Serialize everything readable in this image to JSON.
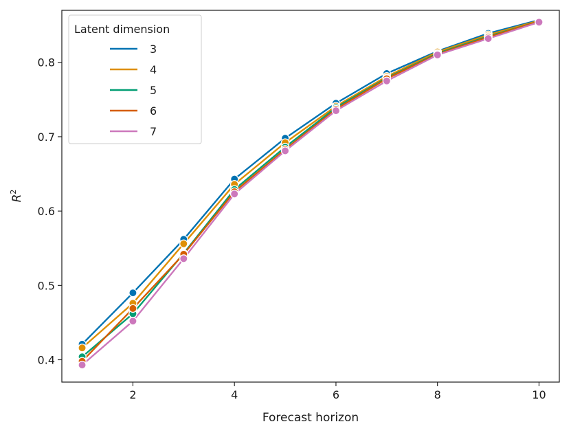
{
  "chart_data": {
    "type": "line",
    "xlabel": "Forecast horizon",
    "ylabel": "R",
    "ylabel_superscript": "2",
    "xlim": [
      0.6,
      10.4
    ],
    "ylim": [
      0.37,
      0.87
    ],
    "xticks": [
      2,
      4,
      6,
      8,
      10
    ],
    "yticks": [
      0.4,
      0.5,
      0.6,
      0.7,
      0.8
    ],
    "ytick_labels": [
      "0.4",
      "0.5",
      "0.6",
      "0.7",
      "0.8"
    ],
    "grid": false,
    "legend": {
      "title": "Latent dimension",
      "placement": "top-left"
    },
    "x": [
      1,
      2,
      3,
      4,
      5,
      6,
      7,
      8,
      9,
      10
    ],
    "series": [
      {
        "name": "3",
        "color": "#0173b2",
        "values": [
          0.421,
          0.49,
          0.562,
          0.643,
          0.698,
          0.745,
          0.785,
          0.815,
          0.839,
          0.857
        ]
      },
      {
        "name": "4",
        "color": "#de8f05",
        "values": [
          0.416,
          0.476,
          0.556,
          0.636,
          0.692,
          0.741,
          0.781,
          0.814,
          0.837,
          0.856
        ]
      },
      {
        "name": "5",
        "color": "#029e73",
        "values": [
          0.404,
          0.462,
          0.543,
          0.629,
          0.686,
          0.739,
          0.779,
          0.812,
          0.835,
          0.855
        ]
      },
      {
        "name": "6",
        "color": "#d55e00",
        "values": [
          0.398,
          0.469,
          0.542,
          0.626,
          0.683,
          0.737,
          0.778,
          0.811,
          0.834,
          0.855
        ]
      },
      {
        "name": "7",
        "color": "#cc78bc",
        "values": [
          0.393,
          0.452,
          0.536,
          0.623,
          0.681,
          0.735,
          0.775,
          0.81,
          0.832,
          0.854
        ]
      }
    ]
  }
}
